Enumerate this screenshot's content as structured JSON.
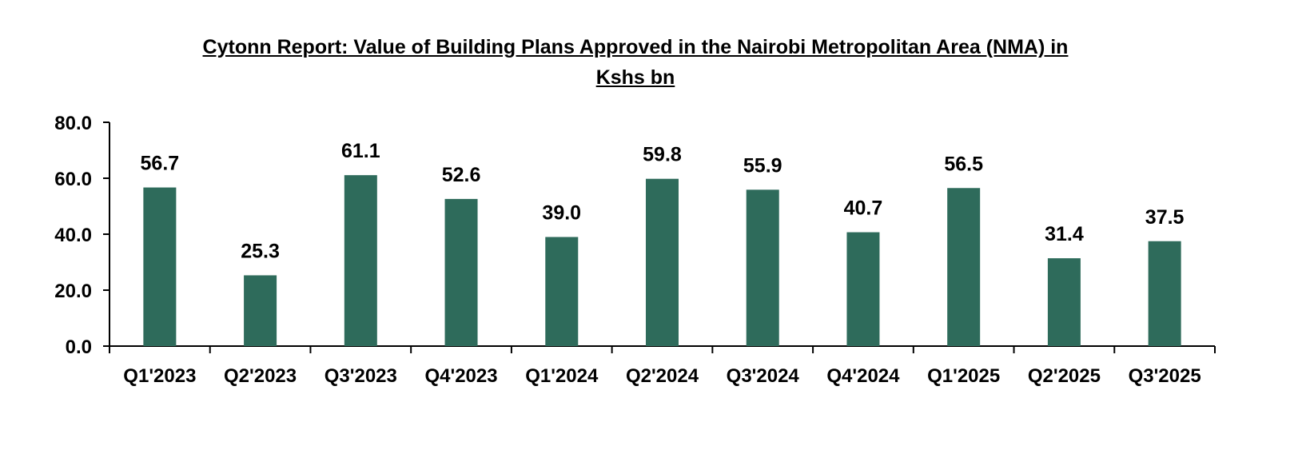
{
  "chart_data": {
    "type": "bar",
    "title": "Cytonn Report: Value of Building Plans Approved in the Nairobi Metropolitan Area (NMA) in Kshs bn",
    "title_lines": [
      "Cytonn Report: Value of Building Plans Approved in the Nairobi Metropolitan Area (NMA) in",
      "Kshs bn"
    ],
    "categories": [
      "Q1'2023",
      "Q2'2023",
      "Q3'2023",
      "Q4'2023",
      "Q1'2024",
      "Q2'2024",
      "Q3'2024",
      "Q4'2024",
      "Q1'2025",
      "Q2'2025",
      "Q3'2025"
    ],
    "values": [
      56.7,
      25.3,
      61.1,
      52.6,
      39.0,
      59.8,
      55.9,
      40.7,
      56.5,
      31.4,
      37.5
    ],
    "data_labels": [
      "56.7",
      "25.3",
      "61.1",
      "52.6",
      "39.0",
      "59.8",
      "55.9",
      "40.7",
      "56.5",
      "31.4",
      "37.5"
    ],
    "xlabel": "",
    "ylabel": "",
    "ylim": [
      0,
      80
    ],
    "yticks": [
      "0.0",
      "20.0",
      "40.0",
      "60.0",
      "80.0"
    ],
    "grid": false,
    "legend": "none",
    "bar_color": "#2e6b5b"
  }
}
